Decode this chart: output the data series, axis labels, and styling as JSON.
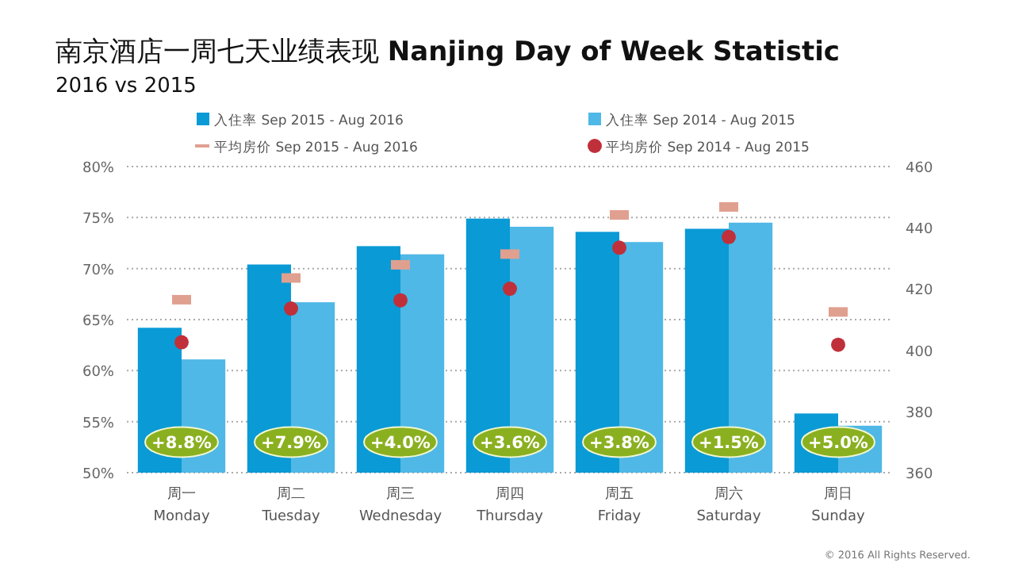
{
  "chart_data": {
    "type": "bar",
    "title": "南京酒店一周七天业绩表现 **Nanjing Day of Week Statistic**",
    "subtitle": "2016 vs 2015",
    "categories": [
      "周一\nMonday",
      "周二\nTuesday",
      "周三\nWednesday",
      "周四\nThursday",
      "周五\nFriday",
      "周六\nSaturday",
      "周日\nSunday"
    ],
    "series": [
      {
        "name": "入住率 Sep 2015 - Aug 2016",
        "color": "#0a9ad6",
        "values": [
          64.2,
          70.4,
          72.2,
          74.9,
          73.6,
          73.9,
          55.8
        ]
      },
      {
        "name": "入住率 Sep 2014 - Aug 2015",
        "color": "#4fb8e6",
        "values": [
          61.1,
          66.7,
          71.4,
          74.1,
          72.6,
          74.5,
          54.6
        ]
      },
      {
        "name": "平均房价 Sep 2015 - Aug 2016",
        "type": "scatter",
        "axis": "y2",
        "color": "#e0a090",
        "values": [
          416.5,
          423.6,
          427.9,
          431.4,
          444.2,
          446.8,
          412.5
        ]
      },
      {
        "name": "平均房价 Sep 2014 - Aug 2015",
        "type": "scatter",
        "marker": "circle",
        "axis": "y2",
        "color": "#c0303a",
        "values": [
          402.6,
          413.6,
          416.3,
          420.1,
          433.5,
          437.0,
          401.8
        ]
      }
    ],
    "ylim": [
      50,
      80
    ],
    "yticks": [
      {
        "value": 50,
        "label": "50%"
      },
      {
        "value": 55,
        "label": "55%"
      },
      {
        "value": 60,
        "label": "60%"
      },
      {
        "value": 65,
        "label": "65%"
      },
      {
        "value": 70,
        "label": "70%"
      },
      {
        "value": 75,
        "label": "75%"
      },
      {
        "value": 80,
        "label": "80%"
      }
    ],
    "y2lim": [
      360,
      460
    ],
    "y2ticks": [
      360,
      380,
      400,
      420,
      440,
      460
    ],
    "grid": "y",
    "legend": "top",
    "annotations": [
      {
        "text": "+8.8%",
        "x": "周一\nMonday",
        "y": 53
      },
      {
        "text": "+7.9%",
        "x": "周二\nTuesday",
        "y": 53
      },
      {
        "text": "+4.0%",
        "x": "周三\nWednesday",
        "y": 53
      },
      {
        "text": "+3.6%",
        "x": "周四\nThursday",
        "y": 53
      },
      {
        "text": "+3.8%",
        "x": "周五\nFriday",
        "y": 53
      },
      {
        "text": "+1.5%",
        "x": "周六\nSaturday",
        "y": 53
      },
      {
        "text": "+5.0%",
        "x": "周日\nSunday",
        "y": 53
      },
      "© 2016 All Rights Reserved."
    ]
  }
}
